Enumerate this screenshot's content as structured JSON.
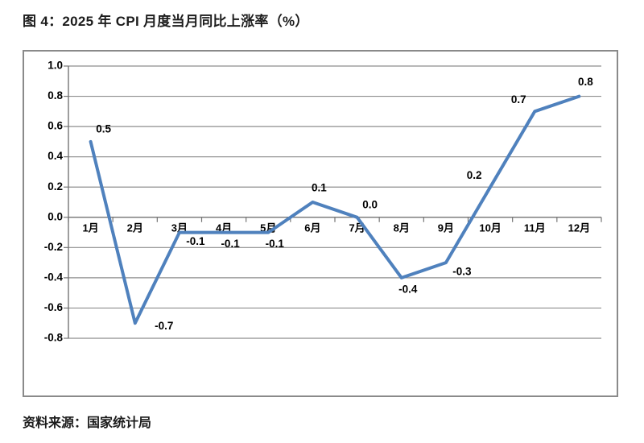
{
  "title": "图 4：2025 年 CPI 月度当月同比上涨率（%）",
  "source": "资料来源：国家统计局",
  "colors": {
    "line": "#4F81BD",
    "grid": "#8e8e8e",
    "axis": "#757575",
    "frame_border": "#8a8a8a",
    "text": "#000000",
    "caption_text": "#1c1c1c"
  },
  "chart_data": {
    "type": "line",
    "title": "2025年CPI月度当月同比上涨率（%）",
    "categories": [
      "1月",
      "2月",
      "3月",
      "4月",
      "5月",
      "6月",
      "7月",
      "8月",
      "9月",
      "10月",
      "11月",
      "12月"
    ],
    "values": [
      0.5,
      -0.7,
      -0.1,
      -0.1,
      -0.1,
      0.1,
      0.0,
      -0.4,
      -0.3,
      0.2,
      0.7,
      0.8
    ],
    "data_labels": [
      "0.5",
      "-0.7",
      "-0.1",
      "-0.1",
      "-0.1",
      "0.1",
      "0.0",
      "-0.4",
      "-0.3",
      "0.2",
      "0.7",
      "0.8"
    ],
    "label_positions": [
      "above-right",
      "right",
      "below-right",
      "below",
      "below",
      "above",
      "above-right",
      "below",
      "below-right",
      "above-left",
      "above-left",
      "above"
    ],
    "xlabel": "",
    "ylabel": "",
    "ylim": [
      -0.8,
      1.0
    ],
    "ytick_step": 0.2,
    "ytick_labels": [
      "1.0",
      "0.8",
      "0.6",
      "0.4",
      "0.2",
      "0.0",
      "-0.2",
      "-0.4",
      "-0.6",
      "-0.8"
    ],
    "grid": true,
    "legend": "none",
    "line_width": 4
  }
}
